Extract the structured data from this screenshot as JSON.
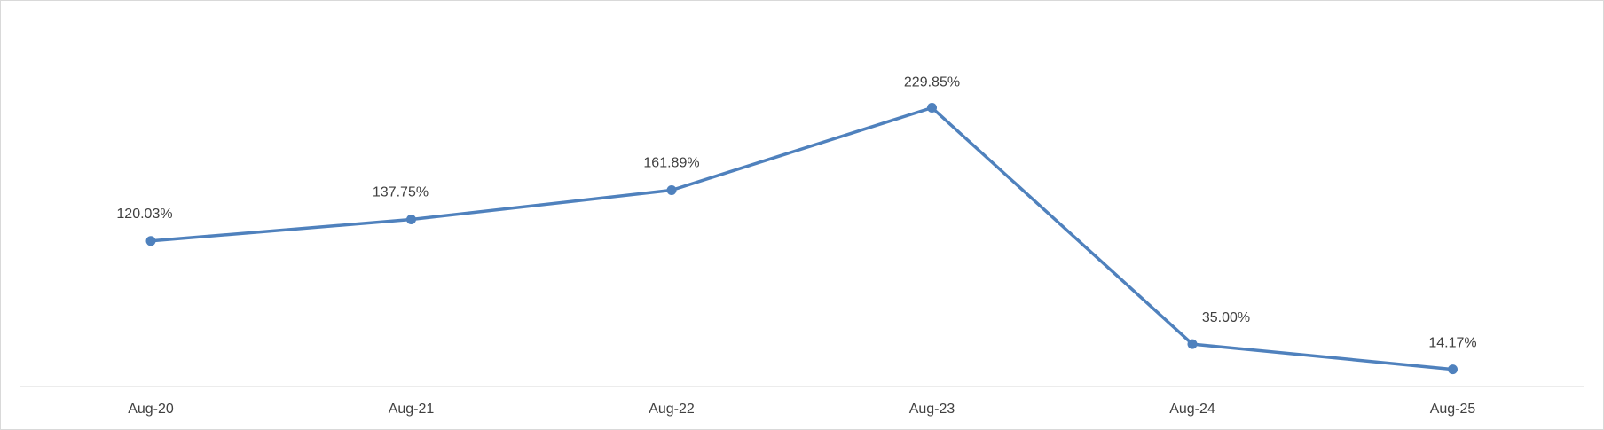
{
  "chart_data": {
    "type": "line",
    "categories": [
      "Aug-20",
      "Aug-21",
      "Aug-22",
      "Aug-23",
      "Aug-24",
      "Aug-25"
    ],
    "series": [
      {
        "values": [
          120.03,
          137.75,
          161.89,
          229.85,
          35.0,
          14.17
        ],
        "labels": [
          "120.03%",
          "137.75%",
          "161.89%",
          "229.85%",
          "35.00%",
          "14.17%"
        ],
        "color": "#4F81BD"
      }
    ],
    "ylim": [
      0,
      240
    ],
    "grid": false,
    "legend": "none",
    "axis_color": "#D9D9D9"
  }
}
